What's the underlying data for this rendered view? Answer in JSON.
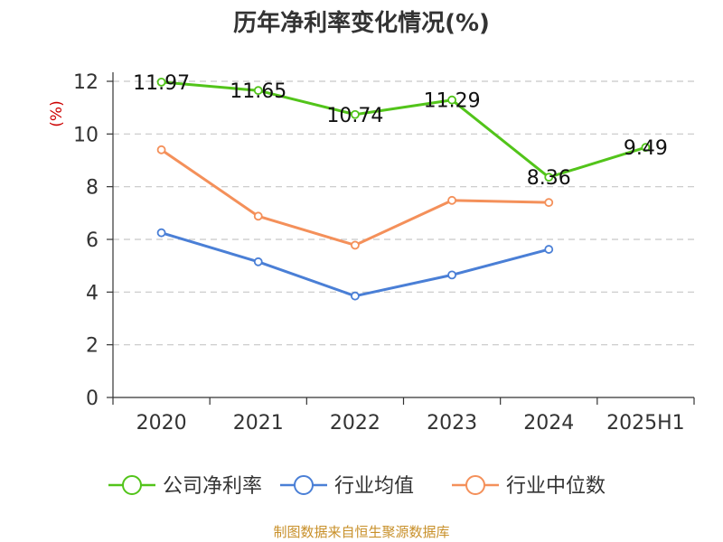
{
  "chart_data": {
    "type": "line",
    "title": "历年净利率变化情况(%)",
    "ylabel": "(%)",
    "xlabel": "",
    "categories": [
      "2020",
      "2021",
      "2022",
      "2023",
      "2024",
      "2025H1"
    ],
    "ylim": [
      0,
      12
    ],
    "yticks": [
      0,
      2,
      4,
      6,
      8,
      10,
      12
    ],
    "grid": "horizontal-dashed",
    "legend_position": "bottom",
    "series": [
      {
        "name": "公司净利率",
        "color": "#52c41a",
        "values": [
          11.97,
          11.65,
          10.74,
          11.29,
          8.36,
          9.49
        ],
        "labels": [
          "11.97",
          "11.65",
          "10.74",
          "11.29",
          "8.36",
          "9.49"
        ]
      },
      {
        "name": "行业均值",
        "color": "#4a7fd6",
        "values": [
          6.25,
          5.15,
          3.85,
          4.65,
          5.62,
          null
        ]
      },
      {
        "name": "行业中位数",
        "color": "#f4905a",
        "values": [
          9.4,
          6.88,
          5.78,
          7.48,
          7.4,
          null
        ]
      }
    ]
  },
  "source_text": "制图数据来自恒生聚源数据库"
}
